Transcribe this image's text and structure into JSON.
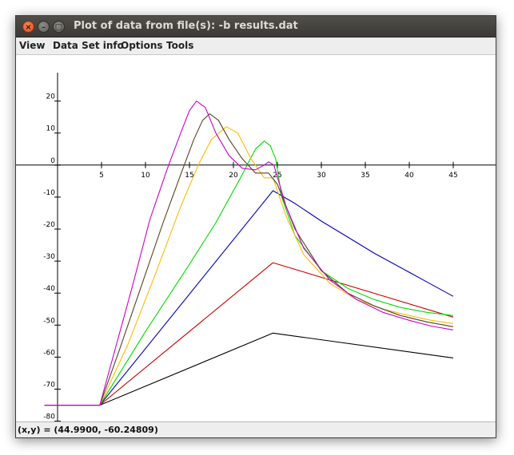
{
  "window": {
    "title": "Plot of data from file(s): -b results.dat",
    "controls": {
      "close": "×",
      "minimize": "–",
      "maximize": "□"
    }
  },
  "menubar": {
    "items": [
      {
        "label": "View"
      },
      {
        "label": "Data Set info"
      },
      {
        "label": "Options"
      },
      {
        "label": "Tools"
      }
    ]
  },
  "status": {
    "text": "(x,y) = (44.9900, -60.24809)"
  },
  "chart_data": {
    "type": "line",
    "title": "",
    "xlabel": "",
    "ylabel": "",
    "xlim": [
      -1.5,
      50
    ],
    "ylim": [
      -85,
      29
    ],
    "xticks": [
      5,
      10,
      15,
      20,
      25,
      30,
      35,
      40,
      45
    ],
    "yticks": [
      20,
      10,
      0,
      -10,
      -20,
      -30,
      -40,
      -50,
      -60,
      -70,
      -80
    ],
    "grid": false,
    "legend": "none",
    "series": [
      {
        "color": "#000000",
        "points": [
          [
            -1.5,
            -75
          ],
          [
            4.8,
            -75
          ],
          [
            24.5,
            -52.5
          ],
          [
            44.99,
            -60.25
          ]
        ]
      },
      {
        "color": "#cc0000",
        "points": [
          [
            -1.5,
            -75
          ],
          [
            4.8,
            -75
          ],
          [
            24.5,
            -30.5
          ],
          [
            44.99,
            -47.5
          ]
        ]
      },
      {
        "color": "#0000bb",
        "points": [
          [
            -1.5,
            -75
          ],
          [
            4.8,
            -75
          ],
          [
            24.5,
            -8
          ],
          [
            27,
            -12
          ],
          [
            30,
            -17.5
          ],
          [
            33,
            -22.5
          ],
          [
            36,
            -27.5
          ],
          [
            39,
            -32
          ],
          [
            42,
            -36.5
          ],
          [
            44.99,
            -41
          ]
        ]
      },
      {
        "color": "#00dd00",
        "points": [
          [
            -1.5,
            -75
          ],
          [
            4.8,
            -75
          ],
          [
            10,
            -52
          ],
          [
            15,
            -31
          ],
          [
            18,
            -18
          ],
          [
            21,
            -3
          ],
          [
            22.5,
            5
          ],
          [
            23.5,
            7.5
          ],
          [
            24.2,
            6
          ],
          [
            24.8,
            2
          ],
          [
            25.5,
            -10
          ],
          [
            27,
            -22
          ],
          [
            30,
            -33
          ],
          [
            33,
            -38.5
          ],
          [
            36,
            -42
          ],
          [
            39,
            -44.5
          ],
          [
            42,
            -46
          ],
          [
            44.99,
            -47
          ]
        ]
      },
      {
        "color": "#ffbb00",
        "points": [
          [
            -1.5,
            -75
          ],
          [
            4.8,
            -75
          ],
          [
            8,
            -56
          ],
          [
            11,
            -35
          ],
          [
            14,
            -13
          ],
          [
            16,
            0
          ],
          [
            17.5,
            8
          ],
          [
            19.2,
            12
          ],
          [
            20.5,
            10
          ],
          [
            22,
            2
          ],
          [
            23.5,
            -4
          ],
          [
            24.5,
            -4
          ],
          [
            26,
            -16
          ],
          [
            28,
            -28
          ],
          [
            31,
            -37
          ],
          [
            34,
            -42
          ],
          [
            37,
            -45
          ],
          [
            40,
            -47
          ],
          [
            42.5,
            -48.5
          ],
          [
            44.99,
            -49.5
          ]
        ]
      },
      {
        "color": "#554422",
        "points": [
          [
            -1.5,
            -75
          ],
          [
            4.8,
            -75
          ],
          [
            7,
            -58
          ],
          [
            9.5,
            -38
          ],
          [
            12,
            -18
          ],
          [
            14,
            -3
          ],
          [
            15.5,
            8
          ],
          [
            16.5,
            14
          ],
          [
            17.3,
            16
          ],
          [
            18.3,
            14
          ],
          [
            19.5,
            8
          ],
          [
            21,
            2
          ],
          [
            22.5,
            -2.5
          ],
          [
            24,
            -2.5
          ],
          [
            25,
            -6
          ],
          [
            27,
            -20
          ],
          [
            30,
            -33
          ],
          [
            33,
            -40
          ],
          [
            36,
            -44
          ],
          [
            39,
            -47
          ],
          [
            42,
            -49
          ],
          [
            44.99,
            -50.5
          ]
        ]
      },
      {
        "color": "#cc00cc",
        "points": [
          [
            -1.5,
            -75
          ],
          [
            4.8,
            -75
          ],
          [
            6.5,
            -58
          ],
          [
            8.5,
            -38
          ],
          [
            10.5,
            -17
          ],
          [
            12.5,
            -1
          ],
          [
            14,
            10
          ],
          [
            15,
            17
          ],
          [
            15.8,
            20
          ],
          [
            16.8,
            18
          ],
          [
            18,
            10
          ],
          [
            19.5,
            3
          ],
          [
            21,
            -1
          ],
          [
            22.5,
            -1.5
          ],
          [
            23.5,
            0
          ],
          [
            24,
            1
          ],
          [
            24.6,
            0
          ],
          [
            26,
            -13
          ],
          [
            28,
            -26
          ],
          [
            31,
            -36
          ],
          [
            34,
            -42
          ],
          [
            37,
            -46
          ],
          [
            40,
            -48.5
          ],
          [
            42.5,
            -50.3
          ],
          [
            44.99,
            -51.5
          ]
        ]
      }
    ]
  }
}
